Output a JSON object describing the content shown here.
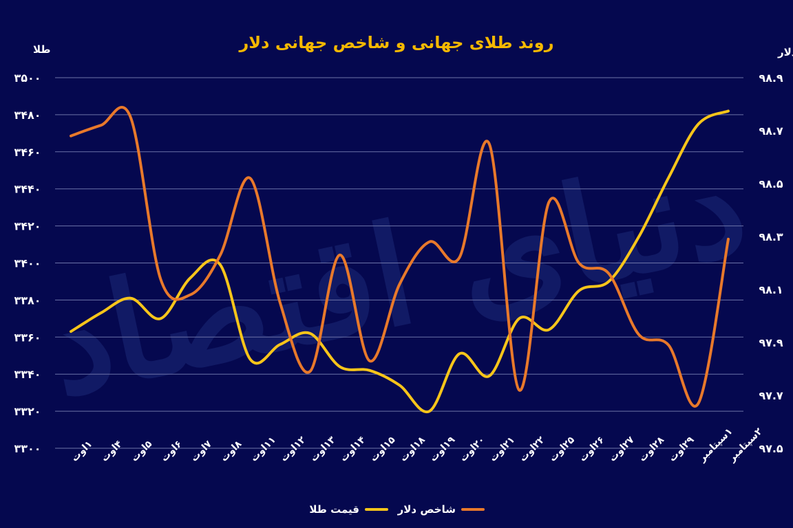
{
  "chart_data": {
    "type": "line",
    "title": "روند طلای جهانی و شاخص جهانی دلار",
    "watermark": "دنیای اقتصاد",
    "left_axis": {
      "label": "طلا",
      "ylim": [
        3300,
        3500
      ],
      "ticks": [
        "۳۳۰۰",
        "۳۳۲۰",
        "۳۳۴۰",
        "۳۳۶۰",
        "۳۳۸۰",
        "۳۴۰۰",
        "۳۴۲۰",
        "۳۴۴۰",
        "۳۴۶۰",
        "۳۴۸۰",
        "۳۵۰۰"
      ]
    },
    "right_axis": {
      "label": "دلار",
      "ylim": [
        97.5,
        98.9
      ],
      "ticks": [
        "۹۷.۵",
        "۹۷.۷",
        "۹۷.۹",
        "۹۸.۱",
        "۹۸.۳",
        "۹۸.۵",
        "۹۸.۷",
        "۹۸.۹"
      ]
    },
    "categories": [
      "۱اوت",
      "۴اوت",
      "۵اوت",
      "۶اوت",
      "۷اوت",
      "۸اوت",
      "۱۱اوت",
      "۱۲اوت",
      "۱۳اوت",
      "۱۴اوت",
      "۱۵اوت",
      "۱۸اوت",
      "۱۹اوت",
      "۲۰اوت",
      "۲۱اوت",
      "۲۲اوت",
      "۲۵اوت",
      "۲۶اوت",
      "۲۷اوت",
      "۲۸اوت",
      "۲۹اوت",
      "۱سپتامبر",
      "۲سپتامبر"
    ],
    "series": [
      {
        "name": "قیمت طلا",
        "axis": "left",
        "color": "#f7c51a",
        "values": [
          3363,
          3373,
          3381,
          3370,
          3392,
          3399,
          3348,
          3356,
          3362,
          3344,
          3342,
          3334,
          3320,
          3351,
          3339,
          3370,
          3364,
          3385,
          3390,
          3414,
          3446,
          3475,
          3482
        ]
      },
      {
        "name": "شاخص دلار",
        "axis": "right",
        "color": "#e8792b",
        "values": [
          98.68,
          98.72,
          98.75,
          98.14,
          98.08,
          98.23,
          98.52,
          98.05,
          97.79,
          98.23,
          97.83,
          98.12,
          98.28,
          98.22,
          98.65,
          97.72,
          98.43,
          98.2,
          98.16,
          97.93,
          97.89,
          97.67,
          98.29
        ]
      }
    ],
    "legend": {
      "placement": "bottom-center"
    },
    "grid": true
  }
}
